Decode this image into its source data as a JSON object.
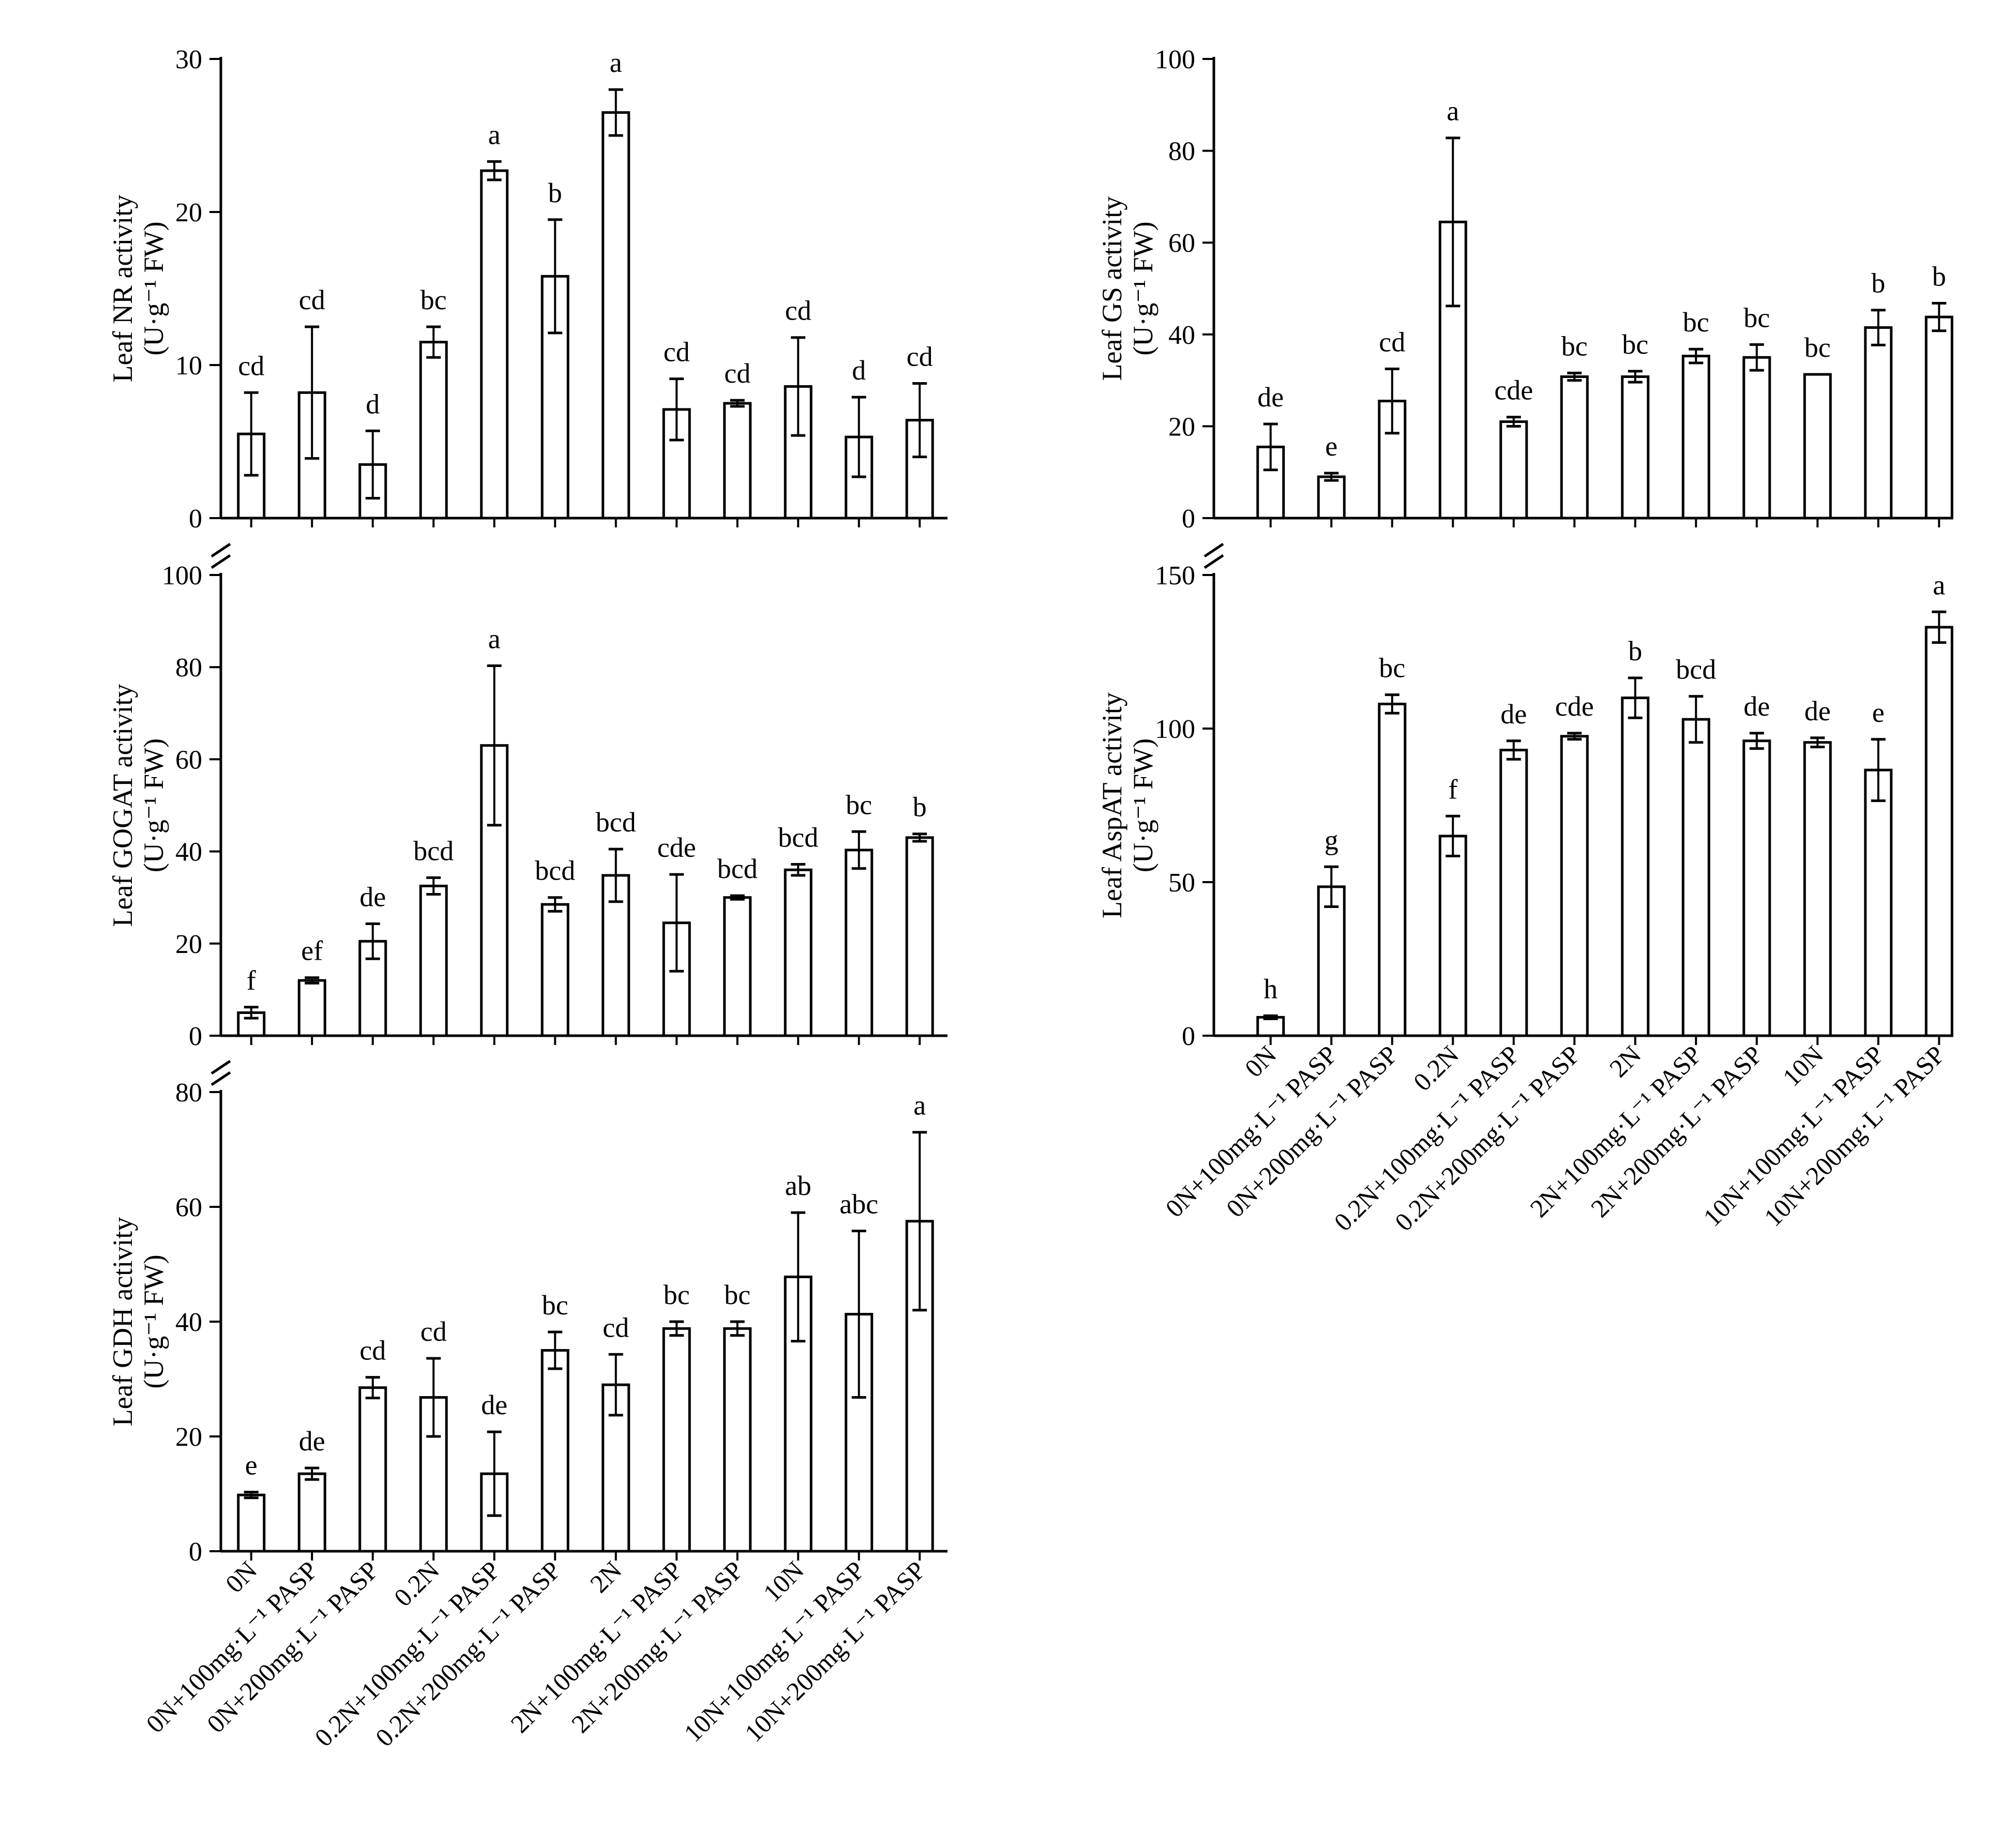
{
  "chart_data": [
    {
      "type": "bar",
      "ylabel": "Leaf NR activity",
      "yunit": "(U·g⁻¹ FW)",
      "ylim": [
        0,
        30
      ],
      "yticks": [
        "0",
        "10",
        "20",
        "30"
      ],
      "categories": [
        "0N",
        "0N+100mg·L⁻¹ PASP",
        "0N+200mg·L⁻¹ PASP",
        "0.2N",
        "0.2N+100mg·L⁻¹ PASP",
        "0.2N+200mg·L⁻¹ PASP",
        "2N",
        "2N+100mg·L⁻¹ PASP",
        "2N+200mg·L⁻¹ PASP",
        "10N",
        "10N+100mg·L⁻¹ PASP",
        "10N+200mg·L⁻¹ PASP"
      ],
      "values": [
        5.5,
        8.2,
        3.5,
        11.5,
        22.7,
        15.8,
        26.5,
        7.1,
        7.5,
        8.6,
        5.3,
        6.4
      ],
      "errors": [
        2.7,
        4.3,
        2.2,
        1.0,
        0.6,
        3.7,
        1.5,
        2.0,
        0.2,
        3.2,
        2.6,
        2.4
      ],
      "letters": [
        "cd",
        "cd",
        "d",
        "bc",
        "a",
        "b",
        "a",
        "cd",
        "cd",
        "cd",
        "d",
        "cd"
      ]
    },
    {
      "type": "bar",
      "ylabel": "Leaf GOGAT activity",
      "yunit": "(U·g⁻¹ FW)",
      "ylim": [
        0,
        100
      ],
      "yticks": [
        "0",
        "20",
        "40",
        "60",
        "80",
        "100"
      ],
      "categories": [
        "0N",
        "0N+100mg·L⁻¹ PASP",
        "0N+200mg·L⁻¹ PASP",
        "0.2N",
        "0.2N+100mg·L⁻¹ PASP",
        "0.2N+200mg·L⁻¹ PASP",
        "2N",
        "2N+100mg·L⁻¹ PASP",
        "2N+200mg·L⁻¹ PASP",
        "10N",
        "10N+100mg·L⁻¹ PASP",
        "10N+200mg·L⁻¹ PASP"
      ],
      "values": [
        5.0,
        12.0,
        20.5,
        32.5,
        63.0,
        28.5,
        34.8,
        24.5,
        30.0,
        36.0,
        40.3,
        43.0
      ],
      "errors": [
        1.2,
        0.6,
        3.8,
        1.8,
        17.3,
        1.5,
        5.7,
        10.5,
        0.4,
        1.2,
        4.0,
        0.8
      ],
      "letters": [
        "f",
        "ef",
        "de",
        "bcd",
        "a",
        "bcd",
        "bcd",
        "cde",
        "bcd",
        "bcd",
        "bc",
        "b"
      ]
    },
    {
      "type": "bar",
      "ylabel": "Leaf GDH activity",
      "yunit": "(U·g⁻¹ FW)",
      "ylim": [
        0,
        80
      ],
      "yticks": [
        "0",
        "20",
        "40",
        "60",
        "80"
      ],
      "categories": [
        "0N",
        "0N+100mg·L⁻¹ PASP",
        "0N+200mg·L⁻¹ PASP",
        "0.2N",
        "0.2N+100mg·L⁻¹ PASP",
        "0.2N+200mg·L⁻¹ PASP",
        "2N",
        "2N+100mg·L⁻¹ PASP",
        "2N+200mg·L⁻¹ PASP",
        "10N",
        "10N+100mg·L⁻¹ PASP",
        "10N+200mg·L⁻¹ PASP"
      ],
      "values": [
        9.8,
        13.5,
        28.5,
        26.8,
        13.5,
        35.0,
        29.0,
        38.8,
        38.8,
        47.8,
        41.3,
        57.5
      ],
      "errors": [
        0.5,
        1.0,
        1.8,
        6.8,
        7.3,
        3.2,
        5.3,
        1.2,
        1.2,
        11.2,
        14.5,
        15.5
      ],
      "letters": [
        "e",
        "de",
        "cd",
        "cd",
        "de",
        "bc",
        "cd",
        "bc",
        "bc",
        "ab",
        "abc",
        "a"
      ]
    },
    {
      "type": "bar",
      "ylabel": "Leaf GS activity",
      "yunit": "(U·g⁻¹ FW)",
      "ylim": [
        0,
        100
      ],
      "yticks": [
        "0",
        "20",
        "40",
        "60",
        "80",
        "100"
      ],
      "categories": [
        "0N",
        "0N+100mg·L⁻¹ PASP",
        "0N+200mg·L⁻¹ PASP",
        "0.2N",
        "0.2N+100mg·L⁻¹ PASP",
        "0.2N+200mg·L⁻¹ PASP",
        "2N",
        "2N+100mg·L⁻¹ PASP",
        "2N+200mg·L⁻¹ PASP",
        "10N",
        "10N+100mg·L⁻¹ PASP",
        "10N+200mg·L⁻¹ PASP"
      ],
      "values": [
        15.5,
        9.0,
        25.5,
        64.5,
        21.0,
        30.8,
        30.8,
        35.3,
        35.0,
        31.3,
        41.5,
        43.8
      ],
      "errors": [
        5.0,
        0.8,
        7.0,
        18.3,
        1.0,
        0.8,
        1.2,
        1.5,
        2.8,
        0.0,
        3.8,
        3.0
      ],
      "letters": [
        "de",
        "e",
        "cd",
        "a",
        "cde",
        "bc",
        "bc",
        "bc",
        "bc",
        "bc",
        "b",
        "b"
      ]
    },
    {
      "type": "bar",
      "ylabel": "Leaf AspAT activity",
      "yunit": "(U·g⁻¹ FW)",
      "ylim": [
        0,
        150
      ],
      "yticks": [
        "0",
        "50",
        "100",
        "150"
      ],
      "categories": [
        "0N",
        "0N+100mg·L⁻¹ PASP",
        "0N+200mg·L⁻¹ PASP",
        "0.2N",
        "0.2N+100mg·L⁻¹ PASP",
        "0.2N+200mg·L⁻¹ PASP",
        "2N",
        "2N+100mg·L⁻¹ PASP",
        "2N+200mg·L⁻¹ PASP",
        "10N",
        "10N+100mg·L⁻¹ PASP",
        "10N+200mg·L⁻¹ PASP"
      ],
      "values": [
        6.0,
        48.5,
        108.0,
        65.0,
        93.0,
        97.5,
        110.0,
        103.0,
        96.0,
        95.5,
        86.5,
        133.0
      ],
      "errors": [
        0.5,
        6.5,
        3.0,
        6.5,
        3.0,
        1.0,
        6.5,
        7.5,
        2.5,
        1.5,
        10.0,
        5.0
      ],
      "letters": [
        "h",
        "g",
        "bc",
        "f",
        "de",
        "cde",
        "b",
        "bcd",
        "de",
        "de",
        "e",
        "a"
      ]
    }
  ]
}
